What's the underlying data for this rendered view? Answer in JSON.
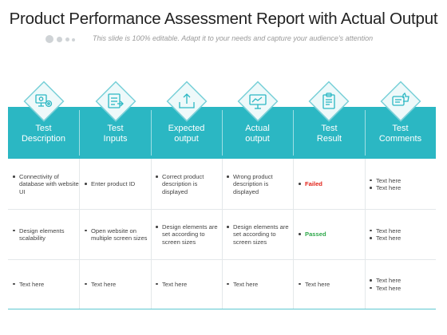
{
  "title": "Product Performance Assessment Report with Actual Output",
  "subtitle": "This slide is 100% editable. Adapt it to your needs and capture your audience's attention",
  "accent_color": "#2bb7c3",
  "status_colors": {
    "failed": "#e2231a",
    "passed": "#2ea84a"
  },
  "columns": [
    {
      "label": "Test\nDescription",
      "icon": "gears-monitor-icon"
    },
    {
      "label": "Test\nInputs",
      "icon": "checklist-arrow-icon"
    },
    {
      "label": "Expected\noutput",
      "icon": "upload-tray-icon"
    },
    {
      "label": "Actual\noutput",
      "icon": "presentation-board-icon"
    },
    {
      "label": "Test\nResult",
      "icon": "clipboard-icon"
    },
    {
      "label": "Test\nComments",
      "icon": "thumbs-up-chat-icon"
    }
  ],
  "rows": [
    {
      "description": "Connectivity of database with website UI",
      "inputs": "Enter product ID",
      "expected": "Correct product description is displayed",
      "actual": "Wrong product description is displayed",
      "result": "Failed",
      "comments": [
        "Text here",
        "Text here"
      ]
    },
    {
      "description": "Design elements scalability",
      "inputs": "Open website on multiple screen sizes",
      "expected": "Design elements are set according to screen sizes",
      "actual": "Design elements are set according to screen sizes",
      "result": "Passed",
      "comments": [
        "Text here",
        "Text here"
      ]
    },
    {
      "description": "Text here",
      "inputs": "Text here",
      "expected": "Text here",
      "actual": "Text here",
      "result": "Text here",
      "comments": [
        "Text here",
        "Text here"
      ]
    }
  ]
}
